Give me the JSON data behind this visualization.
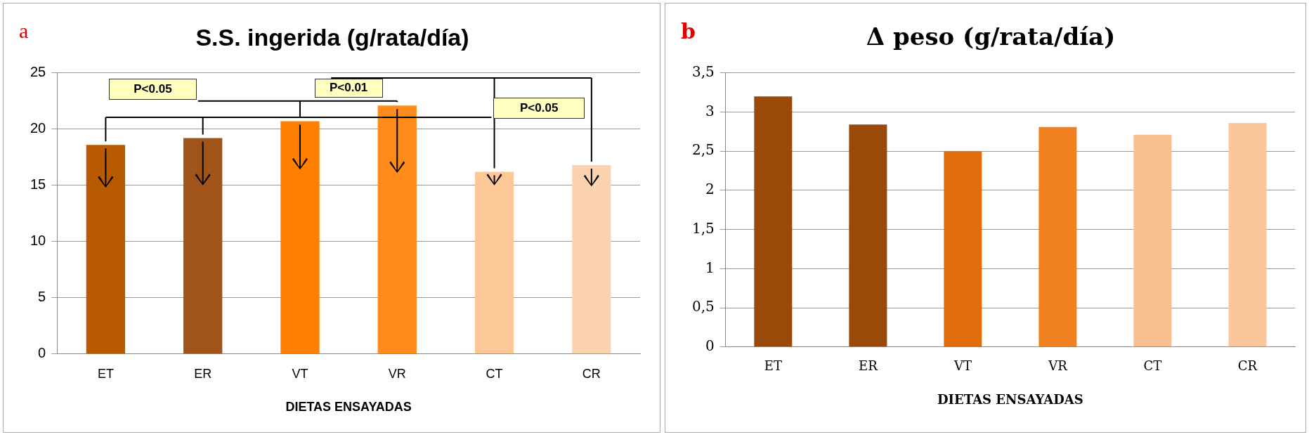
{
  "chart_data": [
    {
      "type": "bar",
      "title": "S.S. ingerida (g/rata/día)",
      "xlabel": "DIETAS ENSAYADAS",
      "categories": [
        "ET",
        "ER",
        "VT",
        "VR",
        "CT",
        "CR"
      ],
      "values": [
        18.6,
        19.2,
        20.7,
        22.1,
        16.2,
        16.8
      ],
      "colors": [
        "#b85a00",
        "#a0541a",
        "#ff7f00",
        "#ff8c1a",
        "#fdc898",
        "#fcd3b0"
      ],
      "ylim": [
        0,
        25
      ],
      "yticks": [
        0,
        5,
        10,
        15,
        20,
        25
      ],
      "grid": "y",
      "legend": false,
      "annotations": [
        "a",
        "P<0.05",
        "P<0.01",
        "P<0.05"
      ]
    },
    {
      "type": "bar",
      "title": "Δ peso (g/rata/día)",
      "xlabel": "DIETAS ENSAYADAS",
      "categories": [
        "ET",
        "ER",
        "VT",
        "VR",
        "CT",
        "CR"
      ],
      "values": [
        3.2,
        2.84,
        2.5,
        2.81,
        2.71,
        2.86
      ],
      "colors": [
        "#9a4a08",
        "#9a4a08",
        "#e06c0c",
        "#f08020",
        "#f8c090",
        "#fbc79a"
      ],
      "ylim": [
        0,
        3.5
      ],
      "yticks": [
        0,
        {
          "value": 0.5,
          "label": "0,5"
        },
        1,
        {
          "value": 1.5,
          "label": "1,5"
        },
        2,
        {
          "value": 2.5,
          "label": "2,5"
        },
        3,
        {
          "value": 3.5,
          "label": "3,5"
        }
      ],
      "grid": "y",
      "legend": false,
      "annotations": [
        "b"
      ]
    }
  ]
}
